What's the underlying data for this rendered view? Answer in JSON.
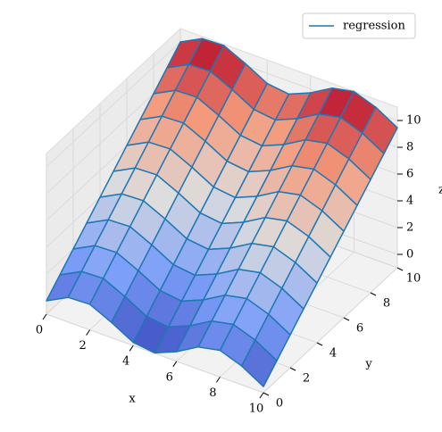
{
  "chart_data": {
    "type": "surface",
    "legend": "regression",
    "legend_loc": "upper right",
    "xlabel": "x",
    "ylabel": "y",
    "zlabel": "z",
    "x": [
      0,
      1,
      2,
      3,
      4,
      5,
      6,
      7,
      8,
      9,
      10
    ],
    "y": [
      0,
      1,
      2,
      3,
      4,
      5,
      6,
      7,
      8,
      9,
      10
    ],
    "z": [
      [
        0,
        0.84,
        0.91,
        0.14,
        -0.76,
        -0.96,
        -0.28,
        0.66,
        0.99,
        0.41,
        -0.54
      ],
      [
        1,
        1.84,
        1.91,
        1.14,
        0.24,
        0.04,
        0.72,
        1.66,
        1.99,
        1.41,
        0.46
      ],
      [
        2,
        2.84,
        2.91,
        2.14,
        1.24,
        1.04,
        1.72,
        2.66,
        2.99,
        2.41,
        1.46
      ],
      [
        3,
        3.84,
        3.91,
        3.14,
        2.24,
        2.04,
        2.72,
        3.66,
        3.99,
        3.41,
        2.46
      ],
      [
        4,
        4.84,
        4.91,
        4.14,
        3.24,
        3.04,
        3.72,
        4.66,
        4.99,
        4.41,
        3.46
      ],
      [
        5,
        5.84,
        5.91,
        5.14,
        4.24,
        4.04,
        4.72,
        5.66,
        5.99,
        5.41,
        4.46
      ],
      [
        6,
        6.84,
        6.91,
        6.14,
        5.24,
        5.04,
        5.72,
        6.66,
        6.99,
        6.41,
        5.46
      ],
      [
        7,
        7.84,
        7.91,
        7.14,
        6.24,
        6.04,
        6.72,
        7.66,
        7.99,
        7.41,
        6.46
      ],
      [
        8,
        8.84,
        8.91,
        8.14,
        7.24,
        7.04,
        7.72,
        8.66,
        8.99,
        8.41,
        7.46
      ],
      [
        9,
        9.84,
        9.91,
        9.14,
        8.24,
        8.04,
        8.72,
        9.66,
        9.99,
        9.41,
        8.46
      ],
      [
        10,
        10.84,
        10.91,
        10.14,
        9.24,
        9.04,
        9.72,
        10.66,
        10.99,
        10.41,
        9.46
      ]
    ],
    "cmap": "coolwarm",
    "edge_color": "#1f77b4",
    "xlim": [
      0,
      10
    ],
    "ylim": [
      0,
      10
    ],
    "zlim": [
      -1,
      11
    ],
    "xticks": [
      0,
      2,
      4,
      6,
      8,
      10
    ],
    "yticks": [
      0,
      2,
      4,
      6,
      8,
      10
    ],
    "zticks": [
      0,
      2,
      4,
      6,
      8,
      10
    ],
    "grid": true
  }
}
